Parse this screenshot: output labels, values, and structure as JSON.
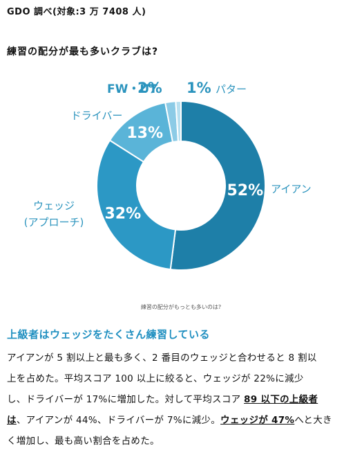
{
  "header": {
    "source": "GDO 調べ(対象:3 万 7408 人)",
    "question": "練習の配分が最も多いクラブは?"
  },
  "chart_data": {
    "type": "pie",
    "donut": true,
    "title": "練習の配分が最も多いクラブは?",
    "caption": "練習の配分がもっとも多いのは?",
    "slices": [
      {
        "name": "アイアン",
        "value": 52,
        "label": "52%",
        "color": "#1e7fa8"
      },
      {
        "name": "ウェッジ",
        "name2": "(アプローチ)",
        "value": 32,
        "label": "32%",
        "color": "#2c98c5"
      },
      {
        "name": "ドライバー",
        "value": 13,
        "label": "13%",
        "color": "#5ab4d8"
      },
      {
        "name": "FW・UT",
        "value": 2,
        "label": "2%",
        "color": "#8ccbe6"
      },
      {
        "name": "パター",
        "value": 1,
        "label": "1%",
        "color": "#b8e0f0"
      }
    ]
  },
  "article": {
    "headline": "上級者はウェッジをたくさん練習している",
    "lines": [
      {
        "text": "アイアンが 5 割以上と最も多く、2 番目のウェッジと合わせると 8 割以"
      },
      {
        "text": "上を占めた。平均スコア 100 以上に絞ると、ウェッジが 22%に減少"
      },
      {
        "a": "し、ドライバーが 17%に増加した。対して平均スコア ",
        "b": "89 以下の上級者"
      },
      {
        "b": "は",
        "a": "、アイアンが 44%、ドライバーが 7%に減少。",
        "c": "ウェッジが 47%",
        "d": "へと大き"
      },
      {
        "text": "く増加し、最も高い割合を占めた。"
      }
    ]
  }
}
